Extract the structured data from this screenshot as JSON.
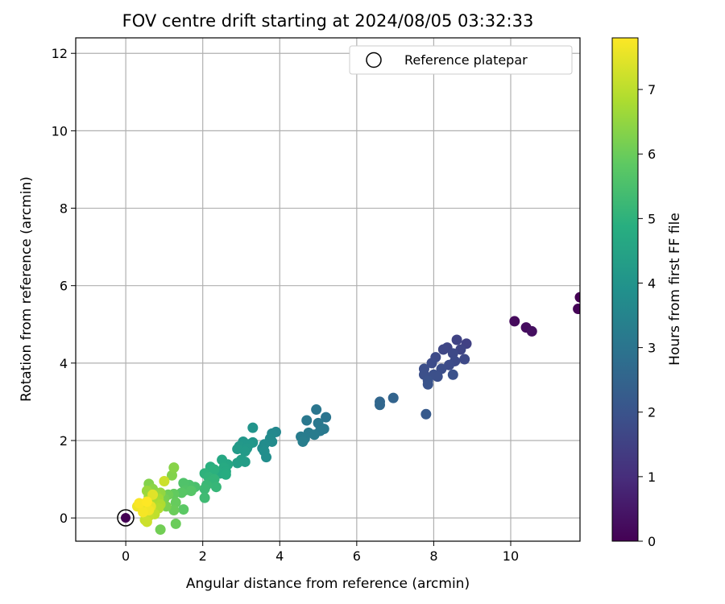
{
  "chart_data": {
    "type": "scatter",
    "title": "FOV centre drift starting at 2024/08/05 03:32:33",
    "xlabel": "Angular distance from reference (arcmin)",
    "ylabel": "Rotation from reference (arcmin)",
    "xlim": [
      -1.3,
      11.8
    ],
    "ylim": [
      -0.6,
      12.4
    ],
    "xticks": [
      0,
      2,
      4,
      6,
      8,
      10
    ],
    "yticks": [
      0,
      2,
      4,
      6,
      8,
      10,
      12
    ],
    "grid": true,
    "legend": {
      "placement": "top-right",
      "entries": [
        "Reference platepar"
      ]
    },
    "colorbar": {
      "label": "Hours from first FF file",
      "range": [
        0,
        7.8
      ],
      "ticks": [
        0,
        1,
        2,
        3,
        4,
        5,
        6,
        7
      ],
      "colormap": "viridis"
    },
    "reference_point": {
      "x": 0,
      "y": 0,
      "hours": 0
    },
    "points": [
      {
        "x": 11.8,
        "y": 5.7,
        "h": 0.0
      },
      {
        "x": 11.75,
        "y": 5.4,
        "h": 0.05
      },
      {
        "x": 10.1,
        "y": 5.08,
        "h": 0.2
      },
      {
        "x": 10.4,
        "y": 4.92,
        "h": 0.25
      },
      {
        "x": 10.55,
        "y": 4.82,
        "h": 0.3
      },
      {
        "x": 8.85,
        "y": 4.5,
        "h": 1.5
      },
      {
        "x": 8.6,
        "y": 4.6,
        "h": 1.55
      },
      {
        "x": 8.35,
        "y": 4.4,
        "h": 1.6
      },
      {
        "x": 8.25,
        "y": 4.35,
        "h": 1.65
      },
      {
        "x": 8.7,
        "y": 4.35,
        "h": 1.6
      },
      {
        "x": 8.5,
        "y": 4.25,
        "h": 1.7
      },
      {
        "x": 8.8,
        "y": 4.1,
        "h": 1.7
      },
      {
        "x": 8.55,
        "y": 4.05,
        "h": 1.75
      },
      {
        "x": 8.05,
        "y": 4.15,
        "h": 1.75
      },
      {
        "x": 7.95,
        "y": 4.0,
        "h": 1.8
      },
      {
        "x": 8.4,
        "y": 3.95,
        "h": 1.8
      },
      {
        "x": 8.2,
        "y": 3.85,
        "h": 1.85
      },
      {
        "x": 7.75,
        "y": 3.85,
        "h": 1.85
      },
      {
        "x": 7.75,
        "y": 3.7,
        "h": 1.9
      },
      {
        "x": 8.0,
        "y": 3.7,
        "h": 1.9
      },
      {
        "x": 8.1,
        "y": 3.65,
        "h": 1.9
      },
      {
        "x": 8.5,
        "y": 3.7,
        "h": 1.95
      },
      {
        "x": 7.85,
        "y": 3.55,
        "h": 1.95
      },
      {
        "x": 7.85,
        "y": 3.45,
        "h": 2.0
      },
      {
        "x": 7.8,
        "y": 2.68,
        "h": 2.2
      },
      {
        "x": 6.95,
        "y": 3.1,
        "h": 2.5
      },
      {
        "x": 6.6,
        "y": 3.0,
        "h": 2.55
      },
      {
        "x": 6.6,
        "y": 2.92,
        "h": 2.6
      },
      {
        "x": 5.2,
        "y": 2.6,
        "h": 3.0
      },
      {
        "x": 4.95,
        "y": 2.8,
        "h": 3.05
      },
      {
        "x": 4.7,
        "y": 2.52,
        "h": 3.1
      },
      {
        "x": 5.0,
        "y": 2.45,
        "h": 3.1
      },
      {
        "x": 5.15,
        "y": 2.3,
        "h": 3.15
      },
      {
        "x": 5.05,
        "y": 2.25,
        "h": 3.15
      },
      {
        "x": 4.75,
        "y": 2.2,
        "h": 3.2
      },
      {
        "x": 4.9,
        "y": 2.15,
        "h": 3.2
      },
      {
        "x": 4.55,
        "y": 2.1,
        "h": 3.25
      },
      {
        "x": 4.65,
        "y": 2.05,
        "h": 3.25
      },
      {
        "x": 4.6,
        "y": 1.97,
        "h": 3.3
      },
      {
        "x": 3.9,
        "y": 2.22,
        "h": 3.6
      },
      {
        "x": 3.8,
        "y": 2.18,
        "h": 3.65
      },
      {
        "x": 3.75,
        "y": 2.05,
        "h": 3.7
      },
      {
        "x": 3.8,
        "y": 1.97,
        "h": 3.7
      },
      {
        "x": 3.6,
        "y": 1.9,
        "h": 3.75
      },
      {
        "x": 3.55,
        "y": 1.8,
        "h": 3.75
      },
      {
        "x": 3.6,
        "y": 1.72,
        "h": 3.8
      },
      {
        "x": 3.65,
        "y": 1.57,
        "h": 3.8
      },
      {
        "x": 3.3,
        "y": 2.33,
        "h": 4.0
      },
      {
        "x": 3.3,
        "y": 1.95,
        "h": 4.05
      },
      {
        "x": 3.05,
        "y": 1.97,
        "h": 4.1
      },
      {
        "x": 3.2,
        "y": 1.9,
        "h": 4.1
      },
      {
        "x": 2.95,
        "y": 1.85,
        "h": 4.15
      },
      {
        "x": 3.15,
        "y": 1.8,
        "h": 4.15
      },
      {
        "x": 2.9,
        "y": 1.78,
        "h": 4.2
      },
      {
        "x": 3.1,
        "y": 1.72,
        "h": 4.2
      },
      {
        "x": 3.0,
        "y": 1.5,
        "h": 4.3
      },
      {
        "x": 3.1,
        "y": 1.45,
        "h": 4.3
      },
      {
        "x": 2.9,
        "y": 1.42,
        "h": 4.35
      },
      {
        "x": 2.65,
        "y": 1.38,
        "h": 4.6
      },
      {
        "x": 2.5,
        "y": 1.5,
        "h": 4.65
      },
      {
        "x": 2.55,
        "y": 1.3,
        "h": 4.7
      },
      {
        "x": 2.6,
        "y": 1.2,
        "h": 4.7
      },
      {
        "x": 2.45,
        "y": 1.15,
        "h": 4.75
      },
      {
        "x": 2.6,
        "y": 1.12,
        "h": 4.8
      },
      {
        "x": 2.2,
        "y": 1.32,
        "h": 4.9
      },
      {
        "x": 2.3,
        "y": 1.25,
        "h": 4.95
      },
      {
        "x": 2.05,
        "y": 1.15,
        "h": 5.0
      },
      {
        "x": 2.15,
        "y": 1.05,
        "h": 5.05
      },
      {
        "x": 2.3,
        "y": 1.0,
        "h": 5.1
      },
      {
        "x": 2.2,
        "y": 0.95,
        "h": 5.1
      },
      {
        "x": 2.35,
        "y": 0.8,
        "h": 5.15
      },
      {
        "x": 2.1,
        "y": 0.85,
        "h": 5.2
      },
      {
        "x": 2.05,
        "y": 0.75,
        "h": 5.25
      },
      {
        "x": 2.05,
        "y": 0.52,
        "h": 5.3
      },
      {
        "x": 1.8,
        "y": 0.8,
        "h": 5.5
      },
      {
        "x": 1.65,
        "y": 0.85,
        "h": 5.55
      },
      {
        "x": 1.5,
        "y": 0.9,
        "h": 5.6
      },
      {
        "x": 1.55,
        "y": 0.72,
        "h": 5.65
      },
      {
        "x": 1.7,
        "y": 0.7,
        "h": 5.7
      },
      {
        "x": 1.45,
        "y": 0.65,
        "h": 5.75
      },
      {
        "x": 1.5,
        "y": 0.22,
        "h": 5.8
      },
      {
        "x": 1.25,
        "y": 0.62,
        "h": 5.9
      },
      {
        "x": 1.3,
        "y": 0.4,
        "h": 5.95
      },
      {
        "x": 1.25,
        "y": 0.2,
        "h": 6.0
      },
      {
        "x": 1.3,
        "y": -0.15,
        "h": 6.0
      },
      {
        "x": 1.1,
        "y": 0.6,
        "h": 6.05
      },
      {
        "x": 0.9,
        "y": -0.3,
        "h": 6.1
      },
      {
        "x": 1.0,
        "y": 0.5,
        "h": 6.15
      },
      {
        "x": 0.95,
        "y": 0.4,
        "h": 6.2
      },
      {
        "x": 1.05,
        "y": 0.3,
        "h": 6.2
      },
      {
        "x": 1.2,
        "y": 1.1,
        "h": 6.3
      },
      {
        "x": 1.25,
        "y": 1.3,
        "h": 6.35
      },
      {
        "x": 0.6,
        "y": 0.88,
        "h": 6.3
      },
      {
        "x": 0.7,
        "y": 0.75,
        "h": 6.4
      },
      {
        "x": 0.9,
        "y": 0.65,
        "h": 6.5
      },
      {
        "x": 0.8,
        "y": 0.6,
        "h": 6.55
      },
      {
        "x": 0.55,
        "y": 0.7,
        "h": 6.6
      },
      {
        "x": 0.6,
        "y": 0.55,
        "h": 6.65
      },
      {
        "x": 0.85,
        "y": 0.5,
        "h": 6.7
      },
      {
        "x": 0.75,
        "y": 0.45,
        "h": 6.75
      },
      {
        "x": 0.65,
        "y": 0.4,
        "h": 6.8
      },
      {
        "x": 0.9,
        "y": 0.35,
        "h": 6.85
      },
      {
        "x": 0.85,
        "y": 0.25,
        "h": 6.9
      },
      {
        "x": 0.7,
        "y": 0.2,
        "h": 6.95
      },
      {
        "x": 0.55,
        "y": 0.15,
        "h": 7.0
      },
      {
        "x": 0.75,
        "y": 0.1,
        "h": 7.05
      },
      {
        "x": 0.6,
        "y": 0.05,
        "h": 7.1
      },
      {
        "x": 0.5,
        "y": -0.05,
        "h": 7.15
      },
      {
        "x": 0.55,
        "y": -0.1,
        "h": 7.2
      },
      {
        "x": 1.0,
        "y": 0.95,
        "h": 7.2
      },
      {
        "x": 0.45,
        "y": 0.35,
        "h": 7.3
      },
      {
        "x": 0.5,
        "y": 0.3,
        "h": 7.4
      },
      {
        "x": 0.4,
        "y": 0.32,
        "h": 7.5
      },
      {
        "x": 0.3,
        "y": 0.3,
        "h": 7.6
      },
      {
        "x": 0.65,
        "y": 0.3,
        "h": 7.55
      },
      {
        "x": 0.7,
        "y": 0.6,
        "h": 7.45
      },
      {
        "x": 0.6,
        "y": 0.2,
        "h": 7.65
      },
      {
        "x": 0.45,
        "y": 0.15,
        "h": 7.7
      },
      {
        "x": 0.35,
        "y": 0.38,
        "h": 7.75
      },
      {
        "x": 0.55,
        "y": 0.42,
        "h": 7.8
      }
    ]
  }
}
